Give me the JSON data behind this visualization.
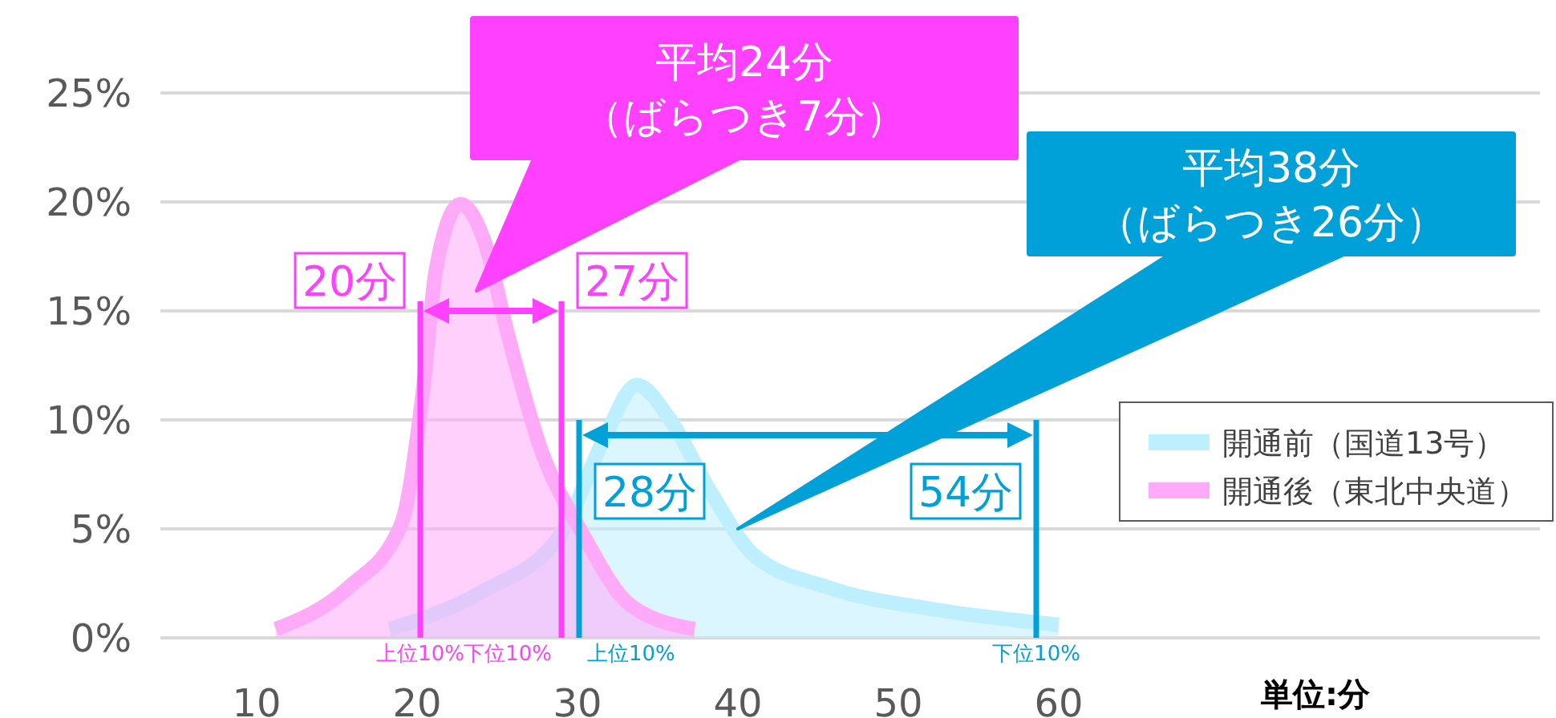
{
  "chart_data": {
    "type": "area",
    "xlabel": "単位:分",
    "xlim": [
      4,
      90
    ],
    "xticks": [
      10,
      20,
      30,
      40,
      50,
      60
    ],
    "ylim": [
      0,
      25
    ],
    "yticks": [
      {
        "value": 0,
        "label": "0%"
      },
      {
        "value": 5,
        "label": "5%"
      },
      {
        "value": 10,
        "label": "10%"
      },
      {
        "value": 15,
        "label": "15%"
      },
      {
        "value": 20,
        "label": "20%"
      },
      {
        "value": 25,
        "label": "25%"
      }
    ],
    "grid": "y",
    "legend": "right",
    "marker": "none",
    "series": [
      {
        "name": "開通前（国道13号）",
        "color": "#bdefff",
        "x": [
          18.3,
          24,
          29,
          31.7,
          33.7,
          35.7,
          38.3,
          41,
          45.7,
          52.3,
          60
        ],
        "values": [
          0.4,
          2.1,
          4.8,
          9.2,
          11.6,
          10.1,
          6.7,
          3.8,
          2.3,
          1.3,
          0.6
        ]
      },
      {
        "name": "開通後（東北中央道）",
        "color": "#ffaaf9",
        "x": [
          11.2,
          15.7,
          19,
          20.3,
          21.2,
          22.7,
          24.2,
          25.7,
          27.7,
          30.3,
          33.3,
          37.3
        ],
        "values": [
          0.4,
          2.3,
          5.2,
          10.9,
          17,
          19.9,
          18.2,
          13.8,
          8.7,
          4.8,
          1.5,
          0.4
        ]
      }
    ],
    "ref_lines": [
      {
        "axis": "x",
        "value": 20.2,
        "label": "上位10%",
        "color": "#ff40ff"
      },
      {
        "axis": "x",
        "value": 29,
        "label": "下位10%",
        "color": "#ff40ff"
      },
      {
        "axis": "x",
        "value": 30.1,
        "label": "上位10%",
        "color": "#00a0d8"
      },
      {
        "axis": "x",
        "value": 58.6,
        "label": "下位10%",
        "color": "#00a0d8"
      }
    ],
    "annotations": [
      {
        "text": "20分",
        "x": 20.2,
        "y": 15
      },
      {
        "text": "27分",
        "x": 29,
        "y": 15
      },
      {
        "text": "28分",
        "x": 30.1,
        "y": 9.3
      },
      {
        "text": "54分",
        "x": 58.6,
        "y": 9.3
      },
      "平均24分（ばらつき7分）",
      {
        "text": "平均38分（ばらつき26分）",
        "x": 40,
        "y": 5
      }
    ]
  }
}
